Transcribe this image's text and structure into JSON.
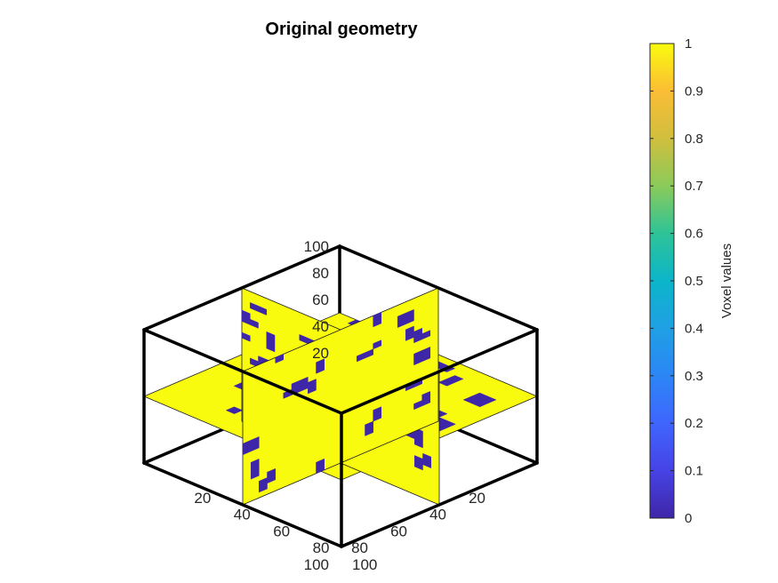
{
  "chart_data": {
    "type": "3d-slice",
    "title": "Original geometry",
    "axes": {
      "x": {
        "ticks": [
          "20",
          "40",
          "60",
          "80",
          "100"
        ],
        "lim": [
          0,
          100
        ]
      },
      "y": {
        "ticks": [
          "20",
          "40",
          "60",
          "80",
          "100"
        ],
        "lim": [
          0,
          100
        ]
      },
      "z": {
        "ticks": [
          "20",
          "40",
          "60",
          "80",
          "100"
        ],
        "lim": [
          0,
          100
        ]
      }
    },
    "slices": {
      "x": 50,
      "y": 50,
      "z": 50
    },
    "voxel_value_range": [
      0,
      1
    ],
    "colors": {
      "value_0": "#3e26a8",
      "value_1": "#f9fb0e",
      "box": "#000000"
    },
    "colorbar": {
      "label": "Voxel values",
      "ticks": [
        "0",
        "0.1",
        "0.2",
        "0.3",
        "0.4",
        "0.5",
        "0.6",
        "0.7",
        "0.8",
        "0.9",
        "1"
      ],
      "colormap": "parula"
    }
  }
}
